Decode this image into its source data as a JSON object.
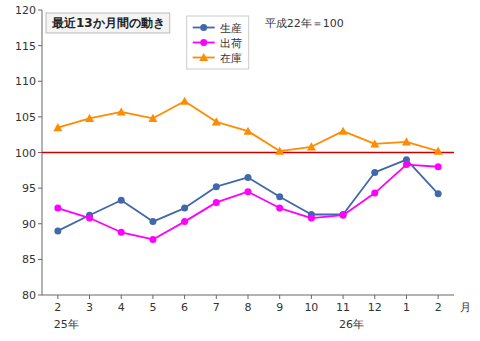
{
  "chart_data": {
    "type": "line",
    "title": "最近13か月間の動き",
    "subtitle": "平成22年＝100",
    "x_label": "月",
    "categories": [
      "2",
      "3",
      "4",
      "5",
      "6",
      "7",
      "8",
      "9",
      "10",
      "11",
      "12",
      "1",
      "2"
    ],
    "series": [
      {
        "name": "生産",
        "color": "#4169aa",
        "marker": "circle",
        "values": [
          89.0,
          91.2,
          93.3,
          90.3,
          92.2,
          95.2,
          96.5,
          93.8,
          91.3,
          91.3,
          97.2,
          99.0,
          94.2
        ]
      },
      {
        "name": "出荷",
        "color": "#ff00ff",
        "marker": "circle",
        "values": [
          92.2,
          90.8,
          88.8,
          87.8,
          90.3,
          93.0,
          94.5,
          92.2,
          90.8,
          91.2,
          94.3,
          98.3,
          98.0
        ]
      },
      {
        "name": "在庫",
        "color": "#ff8c00",
        "marker": "triangle",
        "values": [
          103.5,
          104.8,
          105.7,
          104.8,
          107.2,
          104.3,
          103.0,
          100.2,
          100.8,
          103.0,
          101.2,
          101.5,
          100.2
        ]
      }
    ],
    "hline": {
      "value": 100,
      "color": "#cc0000"
    },
    "annotations": [
      {
        "text": "25年",
        "x": 0
      },
      {
        "text": "26年",
        "x": 9
      }
    ],
    "ylim": [
      80,
      120
    ],
    "yticks": [
      80,
      85,
      90,
      95,
      100,
      105,
      110,
      115,
      120
    ],
    "grid": false,
    "legend": "top"
  }
}
